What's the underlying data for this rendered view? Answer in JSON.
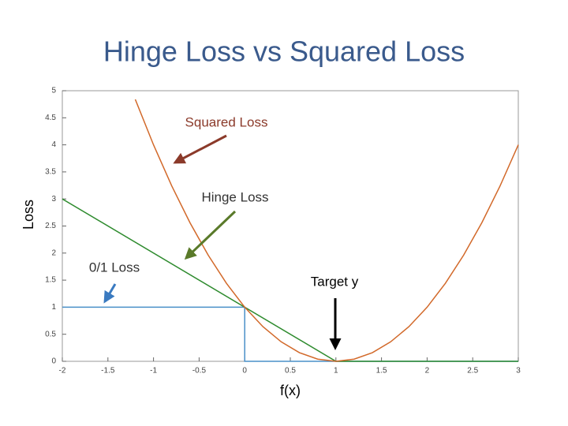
{
  "chart_data": {
    "type": "line",
    "title": "Hinge Loss vs Squared Loss",
    "x_label": "f(x)",
    "y_label": "Loss",
    "xlim": [
      -2,
      3
    ],
    "ylim": [
      0,
      5
    ],
    "xticks": [
      -2,
      -1.5,
      -1,
      -0.5,
      0,
      0.5,
      1,
      1.5,
      2,
      2.5,
      3
    ],
    "yticks": [
      0,
      0.5,
      1,
      1.5,
      2,
      2.5,
      3,
      3.5,
      4,
      4.5,
      5
    ],
    "grid": false,
    "series": [
      {
        "name": "Squared Loss",
        "color": "#d2692a",
        "x": [
          -1.2,
          -1,
          -0.8,
          -0.6,
          -0.4,
          -0.2,
          0,
          0.2,
          0.4,
          0.6,
          0.8,
          1,
          1.2,
          1.4,
          1.6,
          1.8,
          2,
          2.2,
          2.4,
          2.6,
          2.8,
          3
        ],
        "values": [
          4.84,
          4,
          3.24,
          2.56,
          1.96,
          1.44,
          1,
          0.64,
          0.36,
          0.16,
          0.04,
          0,
          0.04,
          0.16,
          0.36,
          0.64,
          1,
          1.44,
          1.96,
          2.56,
          3.24,
          4
        ]
      },
      {
        "name": "Hinge Loss",
        "color": "#2e8b2e",
        "x": [
          -2,
          1,
          3
        ],
        "values": [
          3,
          0,
          0
        ]
      },
      {
        "name": "0/1 Loss",
        "color": "#4a90c8",
        "x": [
          -2,
          0,
          0,
          3
        ],
        "values": [
          1,
          1,
          0,
          0
        ]
      }
    ],
    "annotations": [
      "Squared Loss",
      "Hinge Loss",
      "0/1 Loss",
      "Target y"
    ]
  }
}
